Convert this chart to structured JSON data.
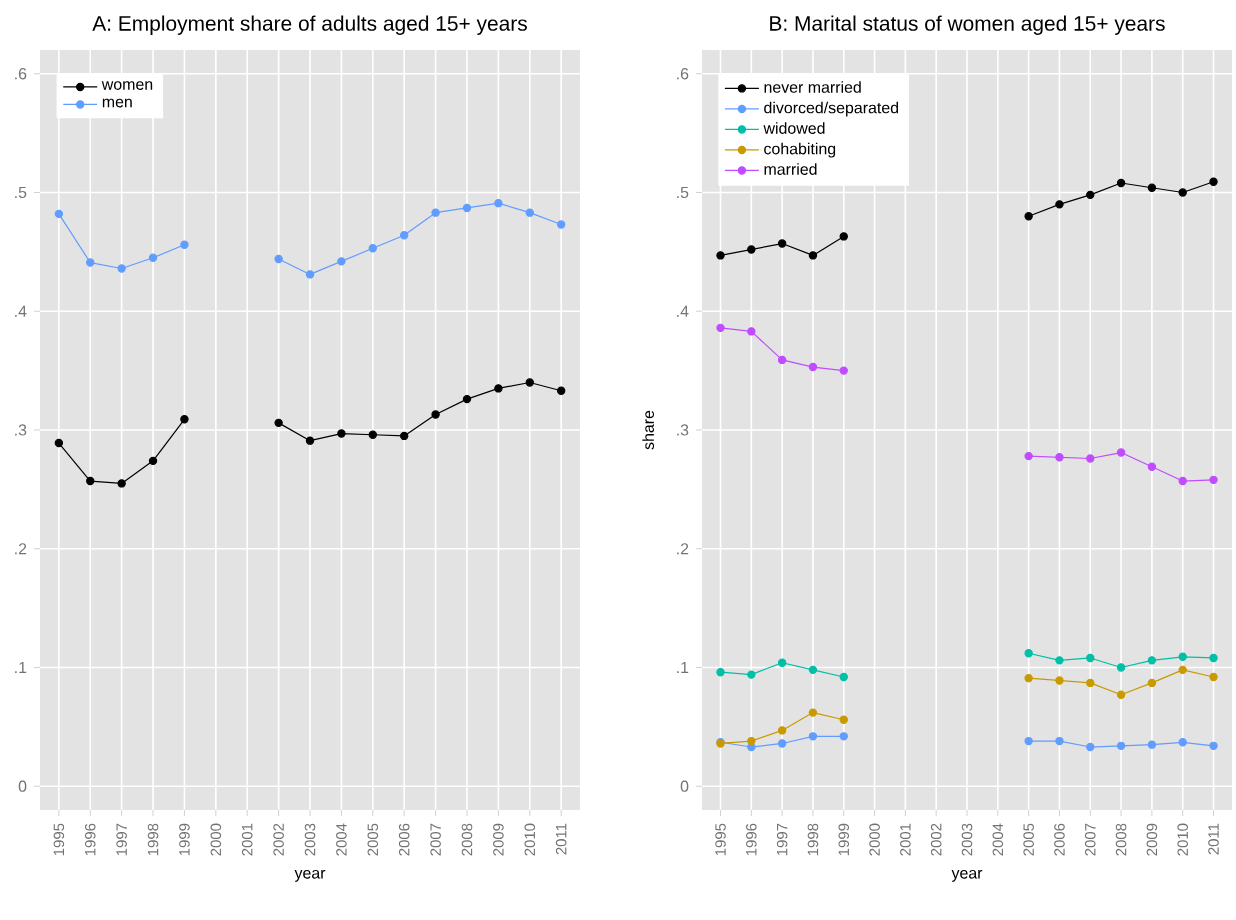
{
  "chart_data": [
    {
      "type": "line",
      "title": "A: Employment share of adults aged 15+ years",
      "xlabel": "year",
      "categories": [
        "1995",
        "1996",
        "1997",
        "1998",
        "1999",
        "2000",
        "2001",
        "2002",
        "2003",
        "2004",
        "2005",
        "2006",
        "2007",
        "2008",
        "2009",
        "2010",
        "2011"
      ],
      "series": [
        {
          "name": "women",
          "color": "#000000",
          "values": [
            0.289,
            0.257,
            0.255,
            0.274,
            0.309,
            null,
            null,
            0.306,
            0.291,
            0.297,
            0.296,
            0.295,
            0.313,
            0.326,
            0.335,
            0.34,
            0.333
          ]
        },
        {
          "name": "men",
          "color": "#619cff",
          "values": [
            0.482,
            0.441,
            0.436,
            0.445,
            0.456,
            null,
            null,
            0.444,
            0.431,
            0.442,
            0.453,
            0.464,
            0.483,
            0.487,
            0.491,
            0.483,
            0.473
          ]
        }
      ],
      "ylim": [
        -0.02,
        0.62
      ],
      "yticks": [
        {
          "value": 0,
          "label": "0"
        },
        {
          "value": 0.1,
          "label": ".1"
        },
        {
          "value": 0.2,
          "label": ".2"
        },
        {
          "value": 0.3,
          "label": ".3"
        },
        {
          "value": 0.4,
          "label": ".4"
        },
        {
          "value": 0.5,
          "label": ".5"
        },
        {
          "value": 0.6,
          "label": ".6"
        }
      ],
      "grid": true,
      "legend": "top left",
      "marker": "circle",
      "line_style": "solid"
    },
    {
      "type": "line",
      "title": "B: Marital status of women aged 15+ years",
      "xlabel": "year",
      "ylabel": "share",
      "categories": [
        "1995",
        "1996",
        "1997",
        "1998",
        "1999",
        "2000",
        "2001",
        "2002",
        "2003",
        "2004",
        "2005",
        "2006",
        "2007",
        "2008",
        "2009",
        "2010",
        "2011"
      ],
      "series": [
        {
          "name": "never married",
          "color": "#000000",
          "values": [
            0.447,
            0.452,
            0.457,
            0.447,
            0.463,
            null,
            null,
            null,
            null,
            null,
            0.48,
            0.49,
            0.498,
            0.508,
            0.504,
            0.5,
            0.509
          ]
        },
        {
          "name": "divorced/separated",
          "color": "#619cff",
          "values": [
            0.037,
            0.033,
            0.036,
            0.042,
            0.042,
            null,
            null,
            null,
            null,
            null,
            0.038,
            0.038,
            0.033,
            0.034,
            0.035,
            0.037,
            0.034
          ]
        },
        {
          "name": "widowed",
          "color": "#00bfa6",
          "values": [
            0.096,
            0.094,
            0.104,
            0.098,
            0.092,
            null,
            null,
            null,
            null,
            null,
            0.112,
            0.106,
            0.108,
            0.1,
            0.106,
            0.109,
            0.108
          ]
        },
        {
          "name": "cohabiting",
          "color": "#c99a00",
          "values": [
            0.036,
            0.038,
            0.047,
            0.062,
            0.056,
            null,
            null,
            null,
            null,
            null,
            0.091,
            0.089,
            0.087,
            0.077,
            0.087,
            0.098,
            0.092
          ]
        },
        {
          "name": "married",
          "color": "#c04bff",
          "values": [
            0.386,
            0.383,
            0.359,
            0.353,
            0.35,
            null,
            null,
            null,
            null,
            null,
            0.278,
            0.277,
            0.276,
            0.281,
            0.269,
            0.257,
            0.258
          ]
        }
      ],
      "ylim": [
        -0.02,
        0.62
      ],
      "yticks": [
        {
          "value": 0,
          "label": "0"
        },
        {
          "value": 0.1,
          "label": ".1"
        },
        {
          "value": 0.2,
          "label": ".2"
        },
        {
          "value": 0.3,
          "label": ".3"
        },
        {
          "value": 0.4,
          "label": ".4"
        },
        {
          "value": 0.5,
          "label": ".5"
        },
        {
          "value": 0.6,
          "label": ".6"
        }
      ],
      "grid": true,
      "legend": "top left",
      "marker": "circle",
      "line_style": "solid"
    }
  ]
}
